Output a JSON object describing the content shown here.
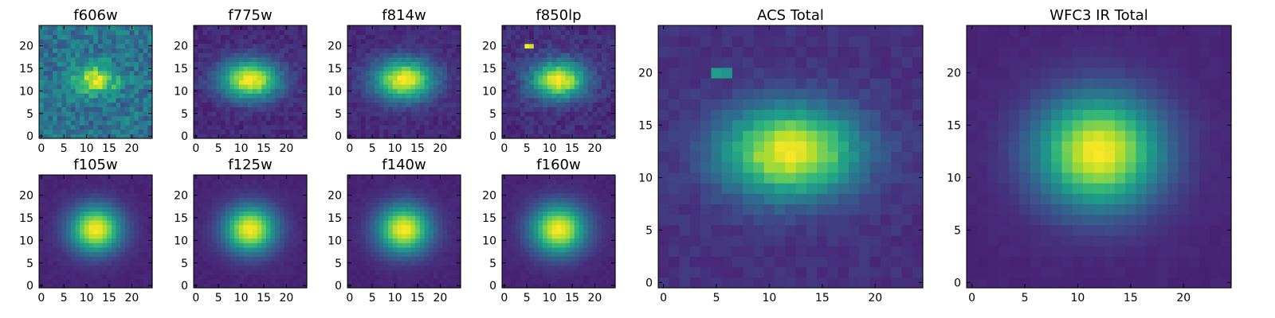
{
  "figure": {
    "colormap": "viridis",
    "colormap_stops": [
      "#440154",
      "#482878",
      "#3e4a89",
      "#31688e",
      "#26828e",
      "#1f9e89",
      "#35b779",
      "#6ece58",
      "#b5de2b",
      "#fde725"
    ]
  },
  "chart_data": [
    {
      "type": "heatmap",
      "title": "f606w",
      "size": [
        25,
        25
      ],
      "xlim": [
        -0.5,
        24.5
      ],
      "ylim": [
        -0.5,
        24.5
      ],
      "xticks": [
        0,
        5,
        10,
        15,
        20
      ],
      "yticks": [
        0,
        5,
        10,
        15,
        20
      ],
      "center": [
        12,
        12.5
      ],
      "sigma": [
        3.2,
        2.2
      ],
      "background": 0.38,
      "noise": 0.28,
      "hot_pixels": []
    },
    {
      "type": "heatmap",
      "title": "f775w",
      "size": [
        25,
        25
      ],
      "xlim": [
        -0.5,
        24.5
      ],
      "ylim": [
        -0.5,
        24.5
      ],
      "xticks": [
        0,
        5,
        10,
        15,
        20
      ],
      "yticks": [
        0,
        5,
        10,
        15,
        20
      ],
      "center": [
        12,
        12.5
      ],
      "sigma": [
        4.5,
        3.0
      ],
      "background": 0.12,
      "noise": 0.1,
      "hot_pixels": []
    },
    {
      "type": "heatmap",
      "title": "f814w",
      "size": [
        25,
        25
      ],
      "xlim": [
        -0.5,
        24.5
      ],
      "ylim": [
        -0.5,
        24.5
      ],
      "xticks": [
        0,
        5,
        10,
        15,
        20
      ],
      "yticks": [
        0,
        5,
        10,
        15,
        20
      ],
      "center": [
        12,
        12.5
      ],
      "sigma": [
        4.6,
        3.1
      ],
      "background": 0.12,
      "noise": 0.09,
      "hot_pixels": []
    },
    {
      "type": "heatmap",
      "title": "f850lp",
      "size": [
        25,
        25
      ],
      "xlim": [
        -0.5,
        24.5
      ],
      "ylim": [
        -0.5,
        24.5
      ],
      "xticks": [
        0,
        5,
        10,
        15,
        20
      ],
      "yticks": [
        0,
        5,
        10,
        15,
        20
      ],
      "center": [
        12,
        12.5
      ],
      "sigma": [
        4.2,
        2.9
      ],
      "background": 0.13,
      "noise": 0.12,
      "hot_pixels": [
        {
          "x": 5,
          "y": 20,
          "value": 1.0
        },
        {
          "x": 6,
          "y": 20,
          "value": 0.92
        }
      ]
    },
    {
      "type": "heatmap",
      "title": "f105w",
      "size": [
        25,
        25
      ],
      "xlim": [
        -0.5,
        24.5
      ],
      "ylim": [
        -0.5,
        24.5
      ],
      "xticks": [
        0,
        5,
        10,
        15,
        20
      ],
      "yticks": [
        0,
        5,
        10,
        15,
        20
      ],
      "center": [
        12,
        12.5
      ],
      "sigma": [
        4.0,
        3.6
      ],
      "background": 0.1,
      "noise": 0.03,
      "hot_pixels": []
    },
    {
      "type": "heatmap",
      "title": "f125w",
      "size": [
        25,
        25
      ],
      "xlim": [
        -0.5,
        24.5
      ],
      "ylim": [
        -0.5,
        24.5
      ],
      "xticks": [
        0,
        5,
        10,
        15,
        20
      ],
      "yticks": [
        0,
        5,
        10,
        15,
        20
      ],
      "center": [
        12,
        12.5
      ],
      "sigma": [
        4.0,
        3.6
      ],
      "background": 0.1,
      "noise": 0.03,
      "hot_pixels": []
    },
    {
      "type": "heatmap",
      "title": "f140w",
      "size": [
        25,
        25
      ],
      "xlim": [
        -0.5,
        24.5
      ],
      "ylim": [
        -0.5,
        24.5
      ],
      "xticks": [
        0,
        5,
        10,
        15,
        20
      ],
      "yticks": [
        0,
        5,
        10,
        15,
        20
      ],
      "center": [
        12,
        12.5
      ],
      "sigma": [
        4.1,
        3.7
      ],
      "background": 0.1,
      "noise": 0.03,
      "hot_pixels": []
    },
    {
      "type": "heatmap",
      "title": "f160w",
      "size": [
        25,
        25
      ],
      "xlim": [
        -0.5,
        24.5
      ],
      "ylim": [
        -0.5,
        24.5
      ],
      "xticks": [
        0,
        5,
        10,
        15,
        20
      ],
      "yticks": [
        0,
        5,
        10,
        15,
        20
      ],
      "center": [
        12,
        12.5
      ],
      "sigma": [
        4.2,
        3.8
      ],
      "background": 0.1,
      "noise": 0.03,
      "hot_pixels": []
    },
    {
      "type": "heatmap",
      "title": "ACS Total",
      "size": [
        25,
        25
      ],
      "xlim": [
        -0.5,
        24.5
      ],
      "ylim": [
        -0.5,
        24.5
      ],
      "xticks": [
        0,
        5,
        10,
        15,
        20
      ],
      "yticks": [
        0,
        5,
        10,
        15,
        20
      ],
      "center": [
        12,
        12.5
      ],
      "sigma": [
        4.5,
        3.0
      ],
      "background": 0.14,
      "noise": 0.07,
      "hot_pixels": [
        {
          "x": 5,
          "y": 20,
          "value": 0.55
        },
        {
          "x": 6,
          "y": 20,
          "value": 0.52
        }
      ]
    },
    {
      "type": "heatmap",
      "title": "WFC3 IR Total",
      "size": [
        25,
        25
      ],
      "xlim": [
        -0.5,
        24.5
      ],
      "ylim": [
        -0.5,
        24.5
      ],
      "xticks": [
        0,
        5,
        10,
        15,
        20
      ],
      "yticks": [
        0,
        5,
        10,
        15,
        20
      ],
      "center": [
        12,
        12.5
      ],
      "sigma": [
        4.1,
        3.7
      ],
      "background": 0.1,
      "noise": 0.02,
      "hot_pixels": []
    }
  ]
}
